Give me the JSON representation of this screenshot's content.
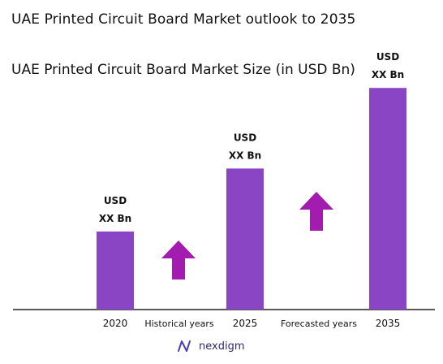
{
  "title": "UAE Printed Circuit Board Market outlook to 2035",
  "brand": {
    "name": "nexdigm"
  },
  "colors": {
    "bar": "#8a45c4",
    "arrow": "#a21caf",
    "axis": "#222222",
    "text": "#111111"
  },
  "chart_data": {
    "type": "bar",
    "title": "UAE Printed Circuit Board Market Size (in USD Bn)",
    "categories": [
      "2020",
      "2025",
      "2035"
    ],
    "values": [
      0.31,
      0.56,
      0.88
    ],
    "value_labels": [
      [
        "USD",
        "XX Bn"
      ],
      [
        "USD",
        "XX Bn"
      ],
      [
        "USD",
        "XX Bn"
      ]
    ],
    "ylim": [
      0,
      1
    ],
    "grid": false,
    "period_labels": [
      "Historical years",
      "Forecasted years"
    ],
    "annotations": [
      {
        "type": "arrow-up",
        "between": [
          "2020",
          "2025"
        ]
      },
      {
        "type": "arrow-up",
        "between": [
          "2025",
          "2035"
        ]
      }
    ]
  }
}
